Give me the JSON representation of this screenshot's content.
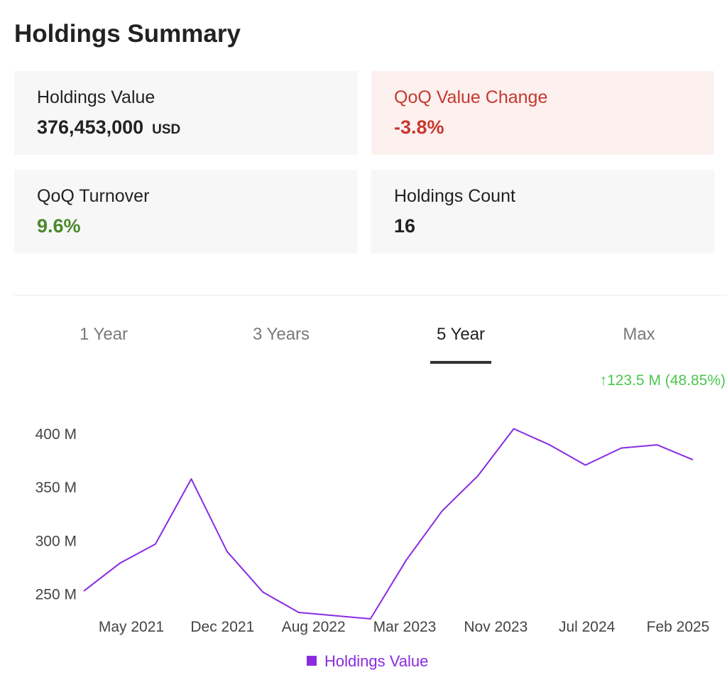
{
  "page": {
    "title": "Holdings Summary"
  },
  "cards": {
    "holdings_value": {
      "label": "Holdings Value",
      "value": "376,453,000",
      "unit": "USD"
    },
    "qoq_value_change": {
      "label": "QoQ Value Change",
      "value": "-3.8%"
    },
    "qoq_turnover": {
      "label": "QoQ Turnover",
      "value": "9.6%"
    },
    "holdings_count": {
      "label": "Holdings Count",
      "value": "16"
    }
  },
  "tabs": {
    "one_year": "1 Year",
    "three_years": "3 Years",
    "five_year": "5 Year",
    "max": "Max",
    "active": "5 Year"
  },
  "change_summary": {
    "arrow": "↑",
    "text": "123.5 M (48.85%)"
  },
  "colors": {
    "series": "#8a2be2",
    "positive": "#4cc74c",
    "negative": "#c8382e",
    "turnover": "#4a8a2a"
  },
  "chart_data": {
    "type": "line",
    "xlabel": "",
    "ylabel": "",
    "ylim": [
      225,
      410
    ],
    "yticks": [
      250,
      300,
      350,
      400
    ],
    "ytick_labels": [
      "250 M",
      "300 M",
      "350 M",
      "400 M"
    ],
    "xtick_labels": [
      "May 2021",
      "Dec 2021",
      "Aug 2022",
      "Mar 2023",
      "Nov 2023",
      "Jul 2024",
      "Feb 2025"
    ],
    "grid": false,
    "legend": "bottom-center",
    "series": [
      {
        "name": "Holdings Value",
        "color": "#8a2be2",
        "values": [
          253,
          279,
          297,
          358,
          290,
          252,
          233,
          230,
          227,
          282,
          328,
          361,
          405,
          390,
          371,
          387,
          390,
          376
        ]
      }
    ]
  }
}
